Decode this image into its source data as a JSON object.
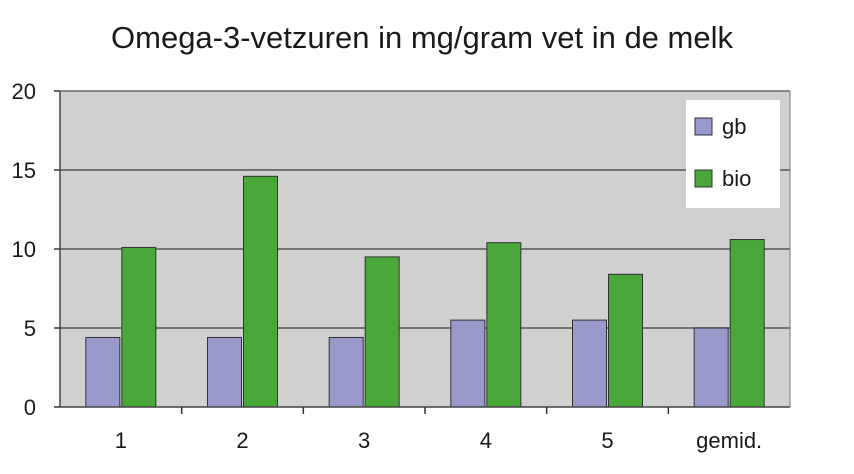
{
  "chart_data": {
    "type": "bar",
    "title": "Omega-3-vetzuren in mg/gram vet in de melk",
    "xlabel": "",
    "ylabel": "",
    "categories": [
      "1",
      "2",
      "3",
      "4",
      "5",
      "gemid."
    ],
    "ylim": [
      0,
      20
    ],
    "yticks": [
      "0",
      "5",
      "10",
      "15",
      "20"
    ],
    "grid": true,
    "legend_position": "top-right",
    "plot_background": "#d0d0d0",
    "series": [
      {
        "name": "gb",
        "color": "#9999cc",
        "values": [
          4.4,
          4.4,
          4.4,
          5.5,
          5.5,
          5.0
        ]
      },
      {
        "name": "bio",
        "color": "#4aa83a",
        "values": [
          10.1,
          14.6,
          9.5,
          10.4,
          8.4,
          10.6
        ]
      }
    ]
  }
}
